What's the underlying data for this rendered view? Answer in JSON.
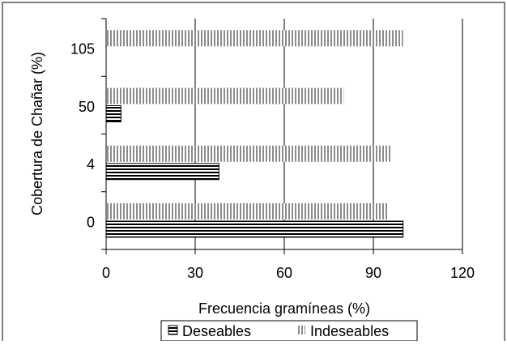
{
  "chart_data": {
    "type": "bar",
    "orientation": "horizontal",
    "categories": [
      "0",
      "4",
      "50",
      "105"
    ],
    "series": [
      {
        "name": "Deseables",
        "values": [
          100,
          38,
          5,
          0
        ],
        "pattern": "horizontal-stripes"
      },
      {
        "name": "Indeseables",
        "values": [
          95,
          96,
          80,
          100
        ],
        "pattern": "vertical-stripes"
      }
    ],
    "xlabel": "Frecuencia gramíneas (%)",
    "ylabel": "Cobertura de Chañar (%)",
    "xlim": [
      0,
      120
    ],
    "xticks": [
      "0",
      "30",
      "60",
      "90",
      "120"
    ],
    "grid": "vertical",
    "legend": "bottom"
  }
}
